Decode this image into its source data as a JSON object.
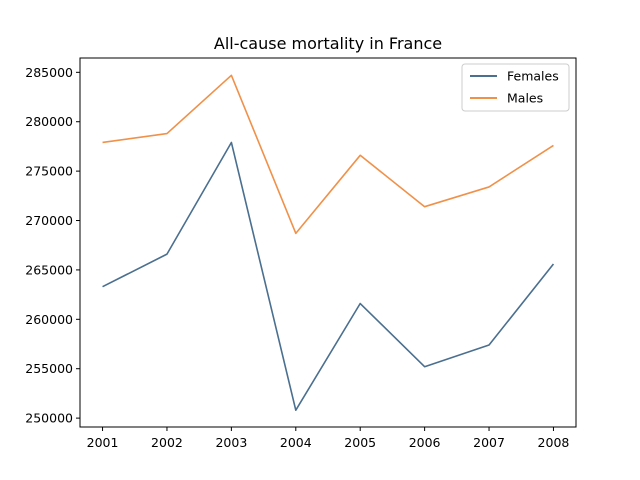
{
  "chart_data": {
    "type": "line",
    "title": "All-cause mortality in France",
    "xlabel": "",
    "ylabel": "",
    "x": [
      2001,
      2002,
      2003,
      2004,
      2005,
      2006,
      2007,
      2008
    ],
    "x_tick_labels": [
      "2001",
      "2002",
      "2003",
      "2004",
      "2005",
      "2006",
      "2007",
      "2008"
    ],
    "y_ticks": [
      250000,
      255000,
      260000,
      265000,
      270000,
      275000,
      280000,
      285000
    ],
    "y_tick_labels": [
      "250000",
      "255000",
      "260000",
      "265000",
      "270000",
      "275000",
      "280000",
      "285000"
    ],
    "xlim": [
      2000.65,
      2008.35
    ],
    "ylim": [
      249100,
      286450
    ],
    "grid": false,
    "legend_position": "top-right",
    "series": [
      {
        "name": "Females",
        "color": "#4a6f8f",
        "values": [
          263300,
          266600,
          277900,
          250800,
          261600,
          255200,
          257400,
          265600
        ]
      },
      {
        "name": "Males",
        "color": "#f0914a",
        "values": [
          277900,
          278800,
          284700,
          268700,
          276600,
          271400,
          273400,
          277600
        ]
      }
    ]
  }
}
